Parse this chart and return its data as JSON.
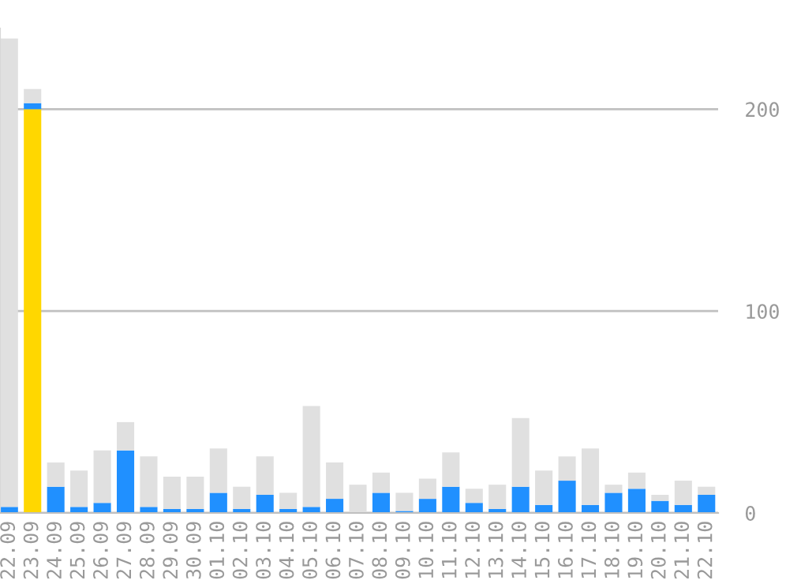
{
  "chart_data": {
    "type": "bar",
    "categories": [
      "22.09",
      "23.09",
      "24.09",
      "25.09",
      "26.09",
      "27.09",
      "28.09",
      "29.09",
      "30.09",
      "01.10",
      "02.10",
      "03.10",
      "04.10",
      "05.10",
      "06.10",
      "07.10",
      "08.10",
      "09.10",
      "10.10",
      "11.10",
      "12.10",
      "13.10",
      "14.10",
      "15.10",
      "16.10",
      "17.10",
      "18.10",
      "19.10",
      "20.10",
      "21.10",
      "22.10"
    ],
    "stacked": true,
    "series": [
      {
        "color": "#ffd700",
        "values": [
          null,
          200,
          null,
          null,
          null,
          null,
          null,
          null,
          null,
          null,
          null,
          null,
          null,
          null,
          null,
          null,
          null,
          null,
          null,
          null,
          null,
          null,
          null,
          null,
          null,
          null,
          null,
          null,
          null,
          null,
          null
        ]
      },
      {
        "color": "#2090ff",
        "values": [
          3,
          3,
          13,
          3,
          5,
          31,
          3,
          2,
          2,
          10,
          2,
          9,
          2,
          3,
          7,
          0,
          10,
          1,
          7,
          13,
          5,
          2,
          13,
          4,
          16,
          4,
          10,
          12,
          6,
          4,
          9
        ]
      },
      {
        "color": "#e0e0e0",
        "values": [
          232,
          7,
          12,
          18,
          26,
          14,
          25,
          16,
          16,
          22,
          11,
          19,
          8,
          50,
          18,
          14,
          10,
          9,
          10,
          17,
          7,
          12,
          34,
          17,
          12,
          28,
          4,
          8,
          3,
          12,
          4
        ]
      }
    ],
    "ylim": [
      0,
      240
    ],
    "yticks": [
      0,
      100,
      200
    ],
    "grid": "y",
    "legend": false
  }
}
